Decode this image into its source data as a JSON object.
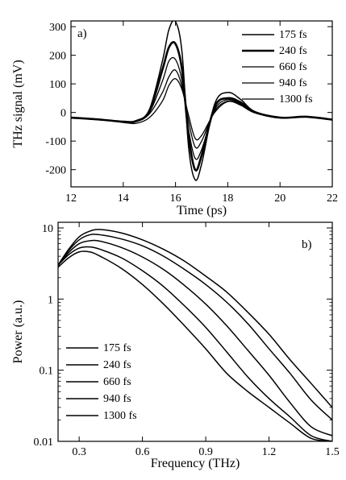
{
  "chart_data": [
    {
      "panel": "a)",
      "type": "line",
      "xlabel": "Time (ps)",
      "ylabel": "THz signal (mV)",
      "xlim": [
        12,
        22
      ],
      "ylim": [
        -260,
        320
      ],
      "xticks": [
        "12",
        "14",
        "16",
        "18",
        "20",
        "22"
      ],
      "yticks": [
        "300",
        "200",
        "100",
        "0",
        "-100",
        "-200"
      ],
      "legend_position": "top-right",
      "x": [
        12,
        13,
        14,
        14.5,
        15,
        15.5,
        15.75,
        16,
        16.25,
        16.5,
        16.75,
        17,
        17.5,
        18,
        18.5,
        19,
        20,
        21,
        22
      ],
      "series": [
        {
          "name": "175 fs",
          "stroke": 1.5,
          "values": [
            -18,
            -24,
            -32,
            -28,
            10,
            180,
            290,
            318,
            210,
            -120,
            -235,
            -180,
            30,
            70,
            45,
            5,
            -18,
            -15,
            -25
          ]
        },
        {
          "name": "240 fs",
          "stroke": 2.6,
          "values": [
            -18,
            -24,
            -32,
            -30,
            5,
            150,
            228,
            240,
            150,
            -80,
            -200,
            -150,
            20,
            50,
            35,
            2,
            -18,
            -15,
            -25
          ]
        },
        {
          "name": "660 fs",
          "stroke": 1.3,
          "values": [
            -18,
            -24,
            -32,
            -30,
            0,
            110,
            180,
            185,
            110,
            -60,
            -160,
            -130,
            10,
            45,
            30,
            0,
            -18,
            -15,
            -25
          ]
        },
        {
          "name": "940 fs",
          "stroke": 1.3,
          "values": [
            -18,
            -24,
            -32,
            -32,
            -5,
            70,
            125,
            148,
            90,
            -30,
            -120,
            -100,
            5,
            40,
            28,
            0,
            -18,
            -15,
            -25
          ]
        },
        {
          "name": "1300 fs",
          "stroke": 1.3,
          "values": [
            -18,
            -24,
            -35,
            -38,
            -18,
            40,
            95,
            118,
            80,
            -10,
            -90,
            -80,
            0,
            38,
            25,
            0,
            -18,
            -15,
            -25
          ]
        }
      ]
    },
    {
      "panel": "b)",
      "type": "line",
      "xlabel": "Frequency (THz)",
      "ylabel": "Power (a.u.)",
      "xlim": [
        0.2,
        1.5
      ],
      "ylim": [
        0.01,
        12
      ],
      "yscale": "log",
      "xticks": [
        "0.3",
        "0.6",
        "0.9",
        "1.2",
        "1.5"
      ],
      "yticks": [
        "10",
        "1",
        "0.1",
        "0.01"
      ],
      "legend_position": "bottom-left",
      "x": [
        0.2,
        0.25,
        0.3,
        0.35,
        0.4,
        0.5,
        0.6,
        0.7,
        0.8,
        0.9,
        1.0,
        1.1,
        1.2,
        1.3,
        1.4,
        1.5
      ],
      "series": [
        {
          "name": "175 fs",
          "stroke": 1.5,
          "values": [
            3.0,
            5.0,
            7.5,
            9.0,
            9.5,
            8.5,
            6.8,
            5.0,
            3.4,
            2.1,
            1.25,
            0.65,
            0.32,
            0.14,
            0.065,
            0.03
          ]
        },
        {
          "name": "240 fs",
          "stroke": 1.5,
          "values": [
            3.0,
            4.8,
            6.8,
            8.0,
            8.0,
            7.0,
            5.6,
            4.0,
            2.6,
            1.6,
            0.9,
            0.45,
            0.2,
            0.09,
            0.038,
            0.02
          ]
        },
        {
          "name": "660 fs",
          "stroke": 1.5,
          "values": [
            3.0,
            4.5,
            6.0,
            6.6,
            6.5,
            5.3,
            3.9,
            2.6,
            1.55,
            0.85,
            0.42,
            0.19,
            0.085,
            0.035,
            0.016,
            0.012
          ]
        },
        {
          "name": "940 fs",
          "stroke": 1.5,
          "values": [
            3.0,
            4.2,
            5.2,
            5.4,
            5.0,
            3.8,
            2.5,
            1.5,
            0.8,
            0.4,
            0.18,
            0.08,
            0.04,
            0.022,
            0.012,
            0.01
          ]
        },
        {
          "name": "1300 fs",
          "stroke": 1.5,
          "values": [
            2.8,
            3.8,
            4.6,
            4.6,
            4.0,
            2.7,
            1.6,
            0.85,
            0.42,
            0.2,
            0.09,
            0.05,
            0.03,
            0.018,
            0.011,
            0.01
          ]
        }
      ]
    }
  ]
}
